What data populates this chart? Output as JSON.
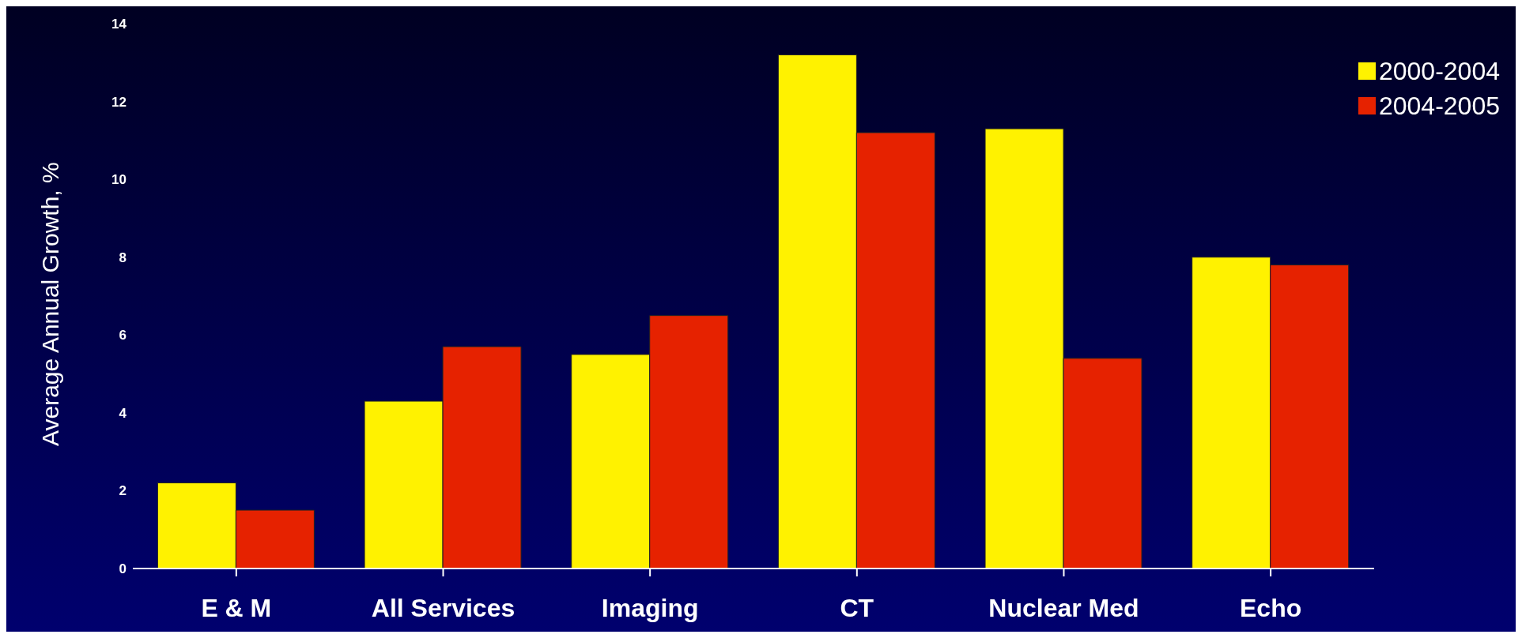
{
  "chart_data": {
    "type": "bar",
    "ylabel": "Average Annual Growth, %",
    "categories": [
      "E & M",
      "All Services",
      "Imaging",
      "CT",
      "Nuclear Med",
      "Echo"
    ],
    "series": [
      {
        "name": "2000-2004",
        "color": "#fff200",
        "values": [
          2.2,
          4.3,
          5.5,
          13.2,
          11.3,
          8.0
        ]
      },
      {
        "name": "2004-2005",
        "color": "#e62200",
        "values": [
          1.5,
          5.7,
          6.5,
          11.2,
          5.4,
          7.8
        ]
      }
    ],
    "ylim": [
      0,
      14
    ],
    "yticks": [
      0,
      2,
      4,
      6,
      8,
      10,
      12,
      14
    ],
    "grid": false,
    "legend": "top right"
  }
}
